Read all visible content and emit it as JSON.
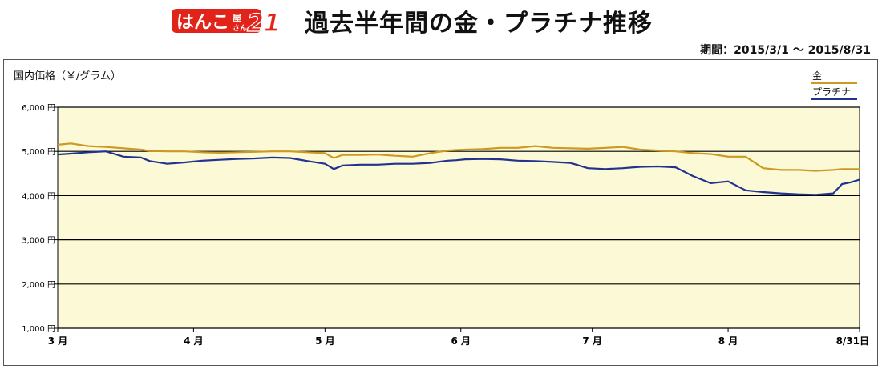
{
  "header": {
    "logo_text": "はんこ屋さん21",
    "title": "過去半年間の金・プラチナ推移",
    "period": "期間：2015/3/1 〜 2015/8/31"
  },
  "colors": {
    "gold": "#CC9922",
    "platinum": "#22338F",
    "plot_background": "#FCF9D6",
    "logo_red": "#E2231A"
  },
  "chart_data": {
    "type": "line",
    "ylabel": "国内価格（￥/グラム）",
    "ylim": [
      1000,
      6000
    ],
    "y_ticks": [
      1000,
      2000,
      3000,
      4000,
      5000,
      6000
    ],
    "y_tick_labels": [
      "1,000 円",
      "2,000 円",
      "3,000 円",
      "4,000 円",
      "5,000 円",
      "6,000 円"
    ],
    "xlim": [
      1,
      184
    ],
    "x_ticks": [
      1,
      32,
      62,
      93,
      123,
      154,
      184
    ],
    "x_tick_labels": [
      "3 月",
      "4 月",
      "5 月",
      "6 月",
      "7 月",
      "8 月",
      "8/31日"
    ],
    "grid": true,
    "legend_position": "top-right",
    "series": [
      {
        "name": "金",
        "color": "#CC9922",
        "x": [
          1,
          4,
          8,
          12,
          16,
          20,
          22,
          26,
          30,
          34,
          38,
          42,
          46,
          50,
          54,
          58,
          62,
          64,
          66,
          70,
          74,
          78,
          82,
          86,
          90,
          92,
          94,
          98,
          102,
          106,
          110,
          114,
          118,
          122,
          126,
          130,
          134,
          138,
          142,
          146,
          150,
          154,
          158,
          162,
          166,
          170,
          174,
          178,
          180,
          182,
          184
        ],
        "y": [
          5150,
          5180,
          5120,
          5100,
          5070,
          5040,
          5010,
          5000,
          5000,
          4980,
          4970,
          4980,
          4990,
          5000,
          5000,
          4980,
          4960,
          4850,
          4920,
          4920,
          4930,
          4900,
          4880,
          4960,
          5020,
          5030,
          5040,
          5050,
          5080,
          5080,
          5120,
          5080,
          5070,
          5060,
          5080,
          5100,
          5040,
          5020,
          5000,
          4960,
          4940,
          4880,
          4880,
          4620,
          4580,
          4580,
          4560,
          4580,
          4600,
          4600,
          4600
        ]
      },
      {
        "name": "プラチナ",
        "color": "#22338F",
        "x": [
          1,
          4,
          8,
          12,
          16,
          20,
          22,
          26,
          30,
          34,
          38,
          42,
          46,
          50,
          54,
          58,
          62,
          64,
          66,
          70,
          74,
          78,
          82,
          86,
          90,
          92,
          94,
          98,
          102,
          106,
          110,
          114,
          118,
          122,
          126,
          130,
          134,
          138,
          142,
          146,
          150,
          154,
          158,
          162,
          166,
          170,
          174,
          178,
          180,
          182,
          184
        ],
        "y": [
          4930,
          4950,
          4980,
          5000,
          4880,
          4860,
          4780,
          4720,
          4750,
          4790,
          4810,
          4830,
          4840,
          4860,
          4850,
          4780,
          4720,
          4600,
          4680,
          4700,
          4700,
          4720,
          4720,
          4740,
          4790,
          4800,
          4820,
          4830,
          4820,
          4790,
          4780,
          4760,
          4740,
          4620,
          4600,
          4620,
          4650,
          4660,
          4640,
          4440,
          4280,
          4320,
          4120,
          4080,
          4050,
          4030,
          4020,
          4050,
          4260,
          4300,
          4360
        ]
      }
    ]
  }
}
